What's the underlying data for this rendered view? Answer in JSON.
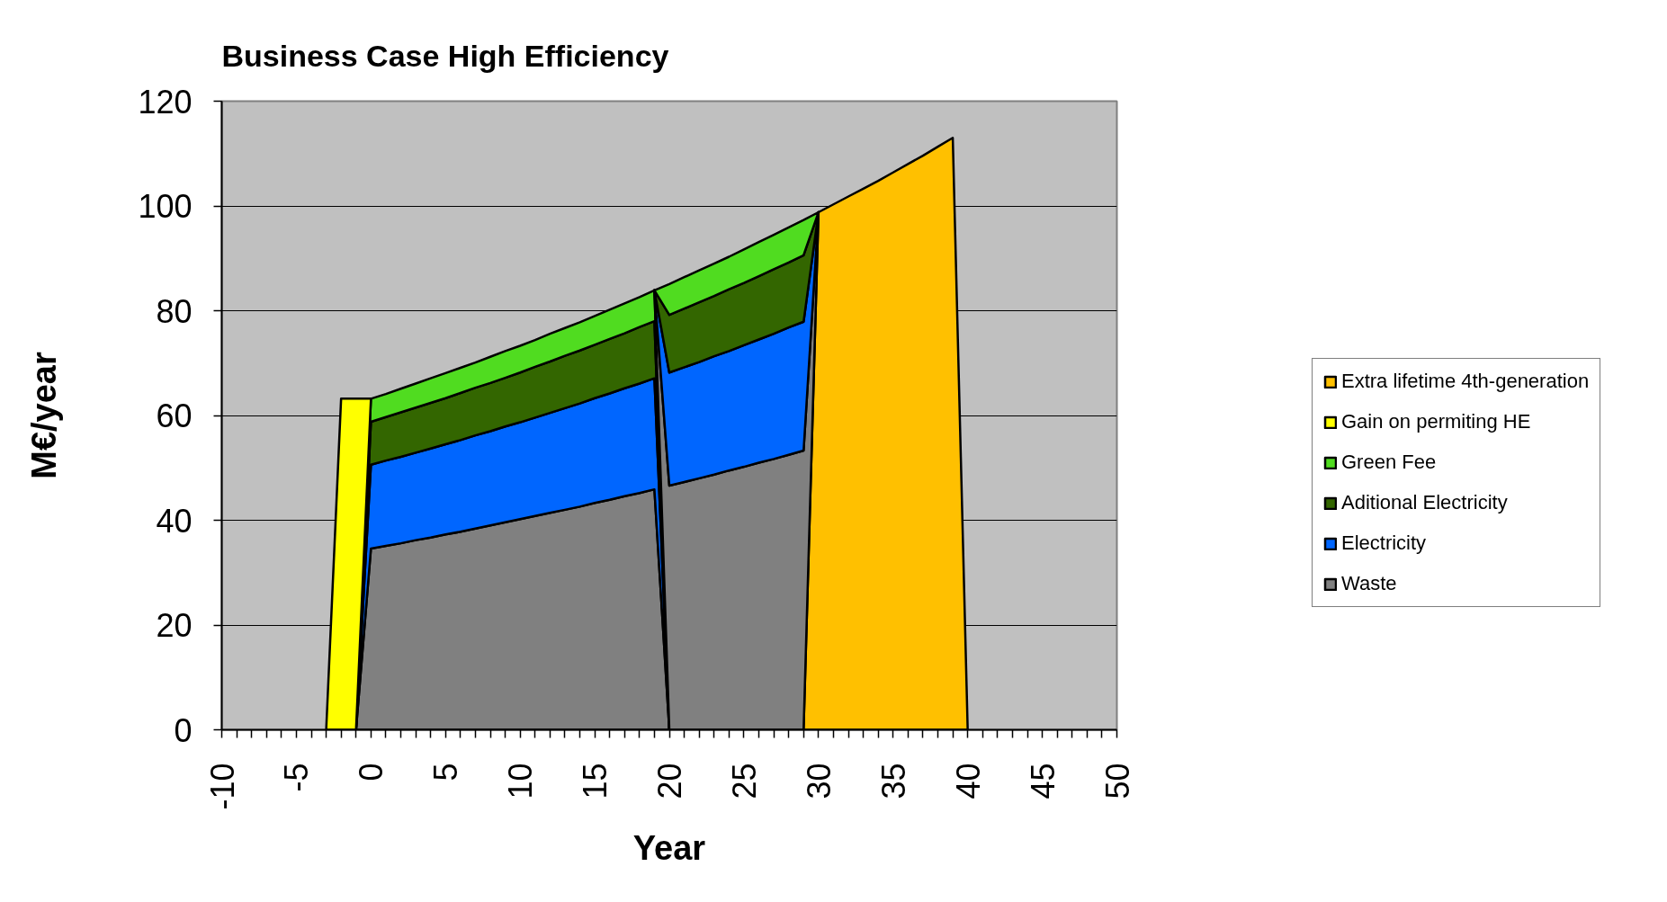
{
  "chart_data": {
    "type": "area",
    "stacked": true,
    "title": "Business Case High Efficiency",
    "xlabel": "Year",
    "ylabel": "M€/year",
    "xlim": [
      -10,
      50
    ],
    "ylim": [
      0,
      120
    ],
    "xticks": [
      -10,
      {
        "value": -9,
        "label": null
      },
      {
        "value": -8,
        "label": null
      },
      {
        "value": -7,
        "label": null
      },
      {
        "value": -6,
        "label": null
      },
      -5,
      {
        "value": -4,
        "label": null
      },
      {
        "value": -3,
        "label": null
      },
      {
        "value": -2,
        "label": null
      },
      {
        "value": -1,
        "label": null
      },
      0,
      {
        "value": 1,
        "label": null
      },
      {
        "value": 2,
        "label": null
      },
      {
        "value": 3,
        "label": null
      },
      {
        "value": 4,
        "label": null
      },
      5,
      {
        "value": 6,
        "label": null
      },
      {
        "value": 7,
        "label": null
      },
      {
        "value": 8,
        "label": null
      },
      {
        "value": 9,
        "label": null
      },
      10,
      {
        "value": 11,
        "label": null
      },
      {
        "value": 12,
        "label": null
      },
      {
        "value": 13,
        "label": null
      },
      {
        "value": 14,
        "label": null
      },
      15,
      {
        "value": 16,
        "label": null
      },
      {
        "value": 17,
        "label": null
      },
      {
        "value": 18,
        "label": null
      },
      {
        "value": 19,
        "label": null
      },
      20,
      {
        "value": 21,
        "label": null
      },
      {
        "value": 22,
        "label": null
      },
      {
        "value": 23,
        "label": null
      },
      {
        "value": 24,
        "label": null
      },
      25,
      {
        "value": 26,
        "label": null
      },
      {
        "value": 27,
        "label": null
      },
      {
        "value": 28,
        "label": null
      },
      {
        "value": 29,
        "label": null
      },
      30,
      {
        "value": 31,
        "label": null
      },
      {
        "value": 32,
        "label": null
      },
      {
        "value": 33,
        "label": null
      },
      {
        "value": 34,
        "label": null
      },
      35,
      {
        "value": 36,
        "label": null
      },
      {
        "value": 37,
        "label": null
      },
      {
        "value": 38,
        "label": null
      },
      {
        "value": 39,
        "label": null
      },
      40,
      {
        "value": 41,
        "label": null
      },
      {
        "value": 42,
        "label": null
      },
      {
        "value": 43,
        "label": null
      },
      {
        "value": 44,
        "label": null
      },
      45,
      {
        "value": 46,
        "label": null
      },
      {
        "value": 47,
        "label": null
      },
      {
        "value": 48,
        "label": null
      },
      {
        "value": 49,
        "label": null
      },
      50
    ],
    "yticks": [
      0,
      20,
      40,
      60,
      80,
      100,
      120
    ],
    "grid": "y",
    "legend": "right",
    "x": [
      -3,
      -2,
      -1,
      0,
      1,
      2,
      3,
      4,
      5,
      6,
      7,
      8,
      9,
      10,
      11,
      12,
      13,
      14,
      15,
      16,
      17,
      18,
      19,
      20,
      21,
      22,
      23,
      24,
      25,
      26,
      27,
      28,
      29,
      30,
      31,
      32,
      33,
      34,
      35,
      36,
      37,
      38,
      39,
      40
    ],
    "series": [
      {
        "name": "Waste",
        "color": "#808080",
        "values": [
          null,
          null,
          0,
          34.6,
          35.1,
          35.6,
          36.2,
          36.7,
          37.3,
          37.8,
          38.4,
          39.0,
          39.6,
          40.2,
          40.8,
          41.4,
          42.0,
          42.6,
          43.3,
          43.9,
          44.6,
          45.2,
          45.9,
          0,
          null,
          null,
          null,
          null,
          null,
          null,
          null,
          null,
          null,
          null,
          null,
          null,
          null,
          null,
          null,
          null,
          null,
          null,
          null,
          null
        ]
      },
      {
        "name": "Electricity",
        "color": "#0066ff",
        "values": [
          null,
          null,
          0,
          16.0,
          16.3,
          16.5,
          16.7,
          17.0,
          17.2,
          17.5,
          17.8,
          18.0,
          18.3,
          18.5,
          18.8,
          19.1,
          19.4,
          19.7,
          20.0,
          20.3,
          20.6,
          20.9,
          21.2,
          0,
          null,
          null,
          null,
          null,
          null,
          null,
          null,
          null,
          null,
          null,
          null,
          null,
          null,
          null,
          null,
          null,
          null,
          null,
          null,
          null
        ]
      },
      {
        "name": "Aditional Electricity",
        "color": "#336600",
        "values": [
          null,
          null,
          0,
          8.2,
          8.3,
          8.5,
          8.6,
          8.7,
          8.8,
          9.0,
          9.1,
          9.2,
          9.3,
          9.5,
          9.7,
          9.8,
          10.0,
          10.1,
          10.2,
          10.4,
          10.5,
          10.8,
          10.9,
          0,
          null,
          null,
          null,
          null,
          null,
          null,
          null,
          null,
          null,
          null,
          null,
          null,
          null,
          null,
          null,
          null,
          null,
          null,
          null,
          null
        ]
      },
      {
        "name": "Green Fee",
        "color": "#50dc20",
        "values": [
          null,
          null,
          0,
          4.4,
          4.4,
          4.5,
          4.6,
          4.7,
          4.8,
          4.8,
          4.8,
          5.0,
          5.1,
          5.1,
          5.1,
          5.3,
          5.3,
          5.4,
          5.5,
          5.6,
          5.7,
          5.7,
          5.9,
          0,
          null,
          null,
          null,
          null,
          null,
          null,
          null,
          null,
          null,
          null,
          null,
          null,
          null,
          null,
          null,
          null,
          null,
          null,
          null,
          null
        ]
      },
      {
        "name": "Gain on permiting HE",
        "color": "#ffff00",
        "values": [
          0,
          63.2,
          63.2,
          0,
          null,
          null,
          null,
          null,
          null,
          null,
          null,
          null,
          null,
          null,
          null,
          null,
          null,
          null,
          null,
          null,
          null,
          null,
          null,
          null,
          null,
          null,
          null,
          null,
          null,
          null,
          null,
          null,
          null,
          null,
          null,
          null,
          null,
          null,
          null,
          null,
          null,
          null,
          null,
          null
        ]
      },
      {
        "name": "Extra lifetime 4th-generation",
        "color": "#ffc000",
        "values": [
          null,
          null,
          null,
          null,
          null,
          null,
          null,
          null,
          null,
          null,
          null,
          null,
          null,
          null,
          null,
          null,
          null,
          null,
          null,
          null,
          null,
          null,
          null,
          null,
          null,
          null,
          null,
          null,
          null,
          null,
          null,
          null,
          0,
          98.8,
          100.3,
          101.8,
          103.3,
          104.8,
          106.4,
          108.0,
          109.6,
          111.3,
          113.0,
          0
        ]
      },
      {
        "color": "#808080",
        "values": [
          null,
          null,
          null,
          null,
          null,
          null,
          null,
          null,
          null,
          null,
          null,
          null,
          null,
          null,
          null,
          null,
          null,
          null,
          null,
          null,
          null,
          null,
          0,
          46.6,
          47.3,
          48.0,
          48.7,
          49.5,
          50.2,
          51.0,
          51.7,
          52.5,
          53.3,
          0,
          null,
          null,
          null,
          null,
          null,
          null,
          null,
          null,
          null,
          null
        ]
      },
      {
        "color": "#0066ff",
        "values": [
          null,
          null,
          null,
          null,
          null,
          null,
          null,
          null,
          null,
          null,
          null,
          null,
          null,
          null,
          null,
          null,
          null,
          null,
          null,
          null,
          null,
          null,
          0,
          21.6,
          21.9,
          22.2,
          22.6,
          22.8,
          23.2,
          23.5,
          23.9,
          24.3,
          24.6,
          0,
          null,
          null,
          null,
          null,
          null,
          null,
          null,
          null,
          null,
          null
        ]
      },
      {
        "color": "#336600",
        "values": [
          null,
          null,
          null,
          null,
          null,
          null,
          null,
          null,
          null,
          null,
          null,
          null,
          null,
          null,
          null,
          null,
          null,
          null,
          null,
          null,
          null,
          null,
          0,
          11.0,
          11.2,
          11.4,
          11.5,
          11.8,
          11.9,
          12.1,
          12.3,
          12.4,
          12.7,
          0,
          null,
          null,
          null,
          null,
          null,
          null,
          null,
          null,
          null,
          null
        ]
      },
      {
        "color": "#50dc20",
        "values": [
          null,
          null,
          null,
          null,
          null,
          null,
          null,
          null,
          null,
          null,
          null,
          null,
          null,
          null,
          null,
          null,
          null,
          null,
          null,
          null,
          null,
          null,
          0,
          5.9,
          6.0,
          6.1,
          6.2,
          6.2,
          6.4,
          6.5,
          6.6,
          6.7,
          6.7,
          0,
          null,
          null,
          null,
          null,
          null,
          null,
          null,
          null,
          null,
          null
        ]
      }
    ]
  }
}
